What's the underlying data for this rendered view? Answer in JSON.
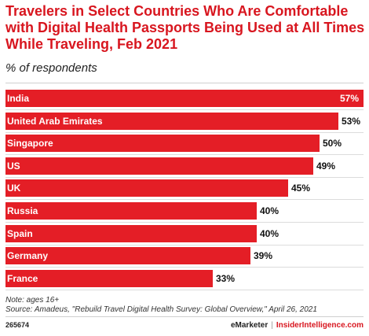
{
  "title": "Travelers in Select Countries Who Are Comfortable with Digital Health Passports Being Used at All Times While Traveling, Feb 2021",
  "subtitle": "% of respondents",
  "note": "Note: ages 16+",
  "source": "Source: Amadeus, \"Rebuild Travel Digital Health Survey: Global Overview,\" April 26, 2021",
  "footer": {
    "id": "265674",
    "brand_left": "eMarketer",
    "separator": "|",
    "brand_right": "InsiderIntelligence.com"
  },
  "colors": {
    "bar": "#e41e26",
    "title": "#d8161f"
  },
  "chart_data": {
    "type": "bar",
    "orientation": "horizontal",
    "categories": [
      "India",
      "United Arab Emirates",
      "Singapore",
      "US",
      "UK",
      "Russia",
      "Spain",
      "Germany",
      "France"
    ],
    "values": [
      57,
      53,
      50,
      49,
      45,
      40,
      40,
      39,
      33
    ],
    "value_labels": [
      "57%",
      "53%",
      "50%",
      "49%",
      "45%",
      "40%",
      "40%",
      "39%",
      "33%"
    ],
    "xlim": [
      0,
      57
    ],
    "grid": false
  }
}
